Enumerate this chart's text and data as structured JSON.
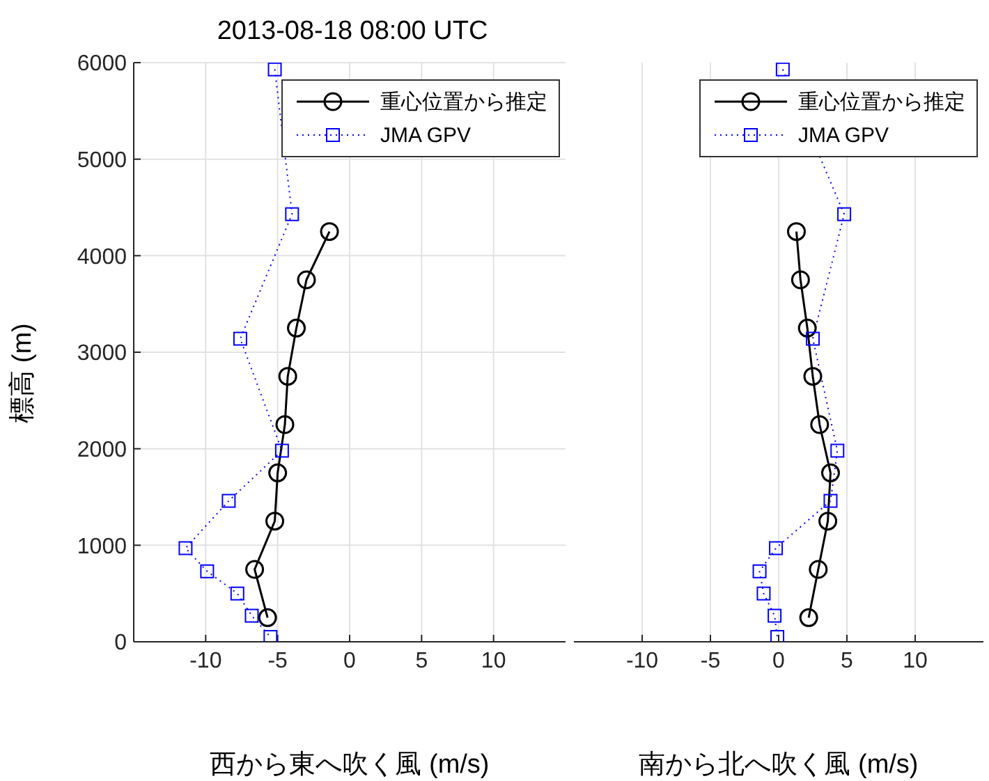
{
  "chart_data": [
    {
      "type": "line",
      "title": "2013-08-18 08:00 UTC",
      "xlabel": "西から東へ吹く風 (m/s)",
      "ylabel": "標高 (m)",
      "xlim": [
        -15,
        15
      ],
      "xticks": [
        -10,
        -5,
        0,
        5,
        10
      ],
      "ylim": [
        0,
        6000
      ],
      "yticks": [
        0,
        1000,
        2000,
        3000,
        4000,
        5000,
        6000
      ],
      "grid": true,
      "legend": "top right",
      "series": [
        {
          "name": "重心位置から推定",
          "color": "#000000",
          "marker": "circle",
          "line_style": "solid",
          "x": [
            -1.4,
            -3.0,
            -3.7,
            -4.3,
            -4.5,
            -5.0,
            -5.2,
            -6.6,
            -5.7
          ],
          "values": [
            4250,
            3750,
            3250,
            2750,
            2250,
            1750,
            1250,
            750,
            250
          ]
        },
        {
          "name": "JMA GPV",
          "color": "#0000ff",
          "marker": "square",
          "line_style": "dotted",
          "x": [
            -5.2,
            -4.0,
            -7.6,
            -4.7,
            -8.4,
            -11.4,
            -9.9,
            -7.8,
            -6.8,
            -5.5
          ],
          "values": [
            5930,
            4430,
            3140,
            1980,
            1460,
            970,
            730,
            500,
            270,
            50
          ]
        }
      ]
    },
    {
      "type": "line",
      "xlabel": "南から北へ吹く風 (m/s)",
      "xlim": [
        -15,
        15
      ],
      "xticks": [
        -10,
        -5,
        0,
        5,
        10
      ],
      "ylim": [
        0,
        6000
      ],
      "yticks": [
        0,
        1000,
        2000,
        3000,
        4000,
        5000,
        6000
      ],
      "tick_labels": "x",
      "grid": true,
      "legend": "top right",
      "series": [
        {
          "name": "重心位置から推定",
          "color": "#000000",
          "marker": "circle",
          "line_style": "solid",
          "x": [
            1.3,
            1.6,
            2.1,
            2.5,
            3.0,
            3.8,
            3.6,
            2.9,
            2.2
          ],
          "values": [
            4250,
            3750,
            3250,
            2750,
            2250,
            1750,
            1250,
            750,
            250
          ]
        },
        {
          "name": "JMA GPV",
          "color": "#0000ff",
          "marker": "square",
          "line_style": "dotted",
          "x": [
            0.3,
            4.8,
            2.5,
            4.3,
            3.8,
            -0.2,
            -1.4,
            -1.1,
            -0.3,
            -0.1
          ],
          "values": [
            5930,
            4430,
            3140,
            1980,
            1460,
            970,
            730,
            500,
            270,
            50
          ]
        }
      ]
    }
  ]
}
